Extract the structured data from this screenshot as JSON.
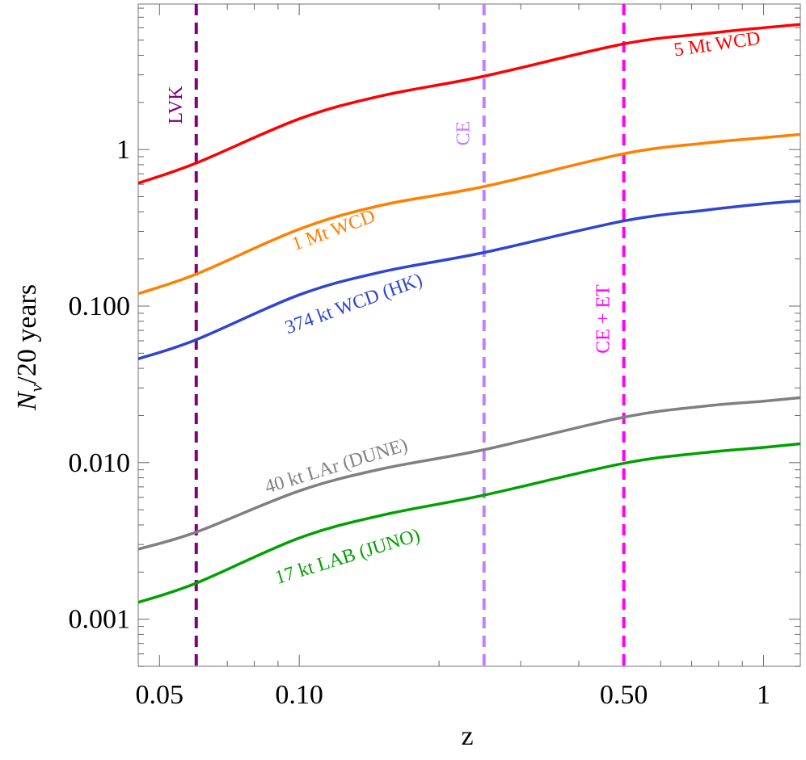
{
  "chart_data": {
    "type": "line",
    "xlabel": "z",
    "ylabel": "N_ν/20 years",
    "xscale": "log",
    "yscale": "log",
    "xlim": [
      0.045,
      1.2
    ],
    "ylim": [
      0.0005,
      8.5
    ],
    "x_ticks": [
      {
        "v": 0.05,
        "label": "0.05"
      },
      {
        "v": 0.1,
        "label": "0.10"
      },
      {
        "v": 0.5,
        "label": "0.50"
      },
      {
        "v": 1,
        "label": "1"
      }
    ],
    "y_ticks": [
      {
        "v": 1,
        "label": "1"
      },
      {
        "v": 0.1,
        "label": "0.100"
      },
      {
        "v": 0.01,
        "label": "0.010"
      },
      {
        "v": 0.001,
        "label": "0.001"
      }
    ],
    "grid": false,
    "x": [
      0.045,
      0.06,
      0.1,
      0.15,
      0.25,
      0.5,
      0.75,
      1.0,
      1.2
    ],
    "series": [
      {
        "name": "5 Mt WCD",
        "color": "#ff0000",
        "values": [
          0.61,
          0.82,
          1.57,
          2.2,
          2.94,
          4.73,
          5.5,
          6.0,
          6.3
        ]
      },
      {
        "name": "1 Mt WCD",
        "color": "#ff8000",
        "values": [
          0.12,
          0.16,
          0.31,
          0.44,
          0.58,
          0.94,
          1.1,
          1.19,
          1.25
        ]
      },
      {
        "name": "374 kt WCD (HK)",
        "color": "#2f45d0",
        "values": [
          0.046,
          0.061,
          0.118,
          0.165,
          0.22,
          0.35,
          0.41,
          0.45,
          0.47
        ]
      },
      {
        "name": "40 kt LAr (DUNE)",
        "color": "#808080",
        "values": [
          0.0028,
          0.0036,
          0.0066,
          0.0091,
          0.0121,
          0.0195,
          0.023,
          0.0247,
          0.026
        ]
      },
      {
        "name": "17 kt LAB (JUNO)",
        "color": "#00a000",
        "values": [
          0.00128,
          0.0017,
          0.0033,
          0.0046,
          0.0062,
          0.0099,
          0.0116,
          0.0125,
          0.0132
        ]
      }
    ],
    "vlines": [
      {
        "name": "LVK",
        "x": 0.06,
        "color": "#800080"
      },
      {
        "name": "CE",
        "x": 0.25,
        "color": "#c080ff"
      },
      {
        "name": "CE + ET",
        "x": 0.5,
        "color": "#ff00ff"
      }
    ]
  }
}
